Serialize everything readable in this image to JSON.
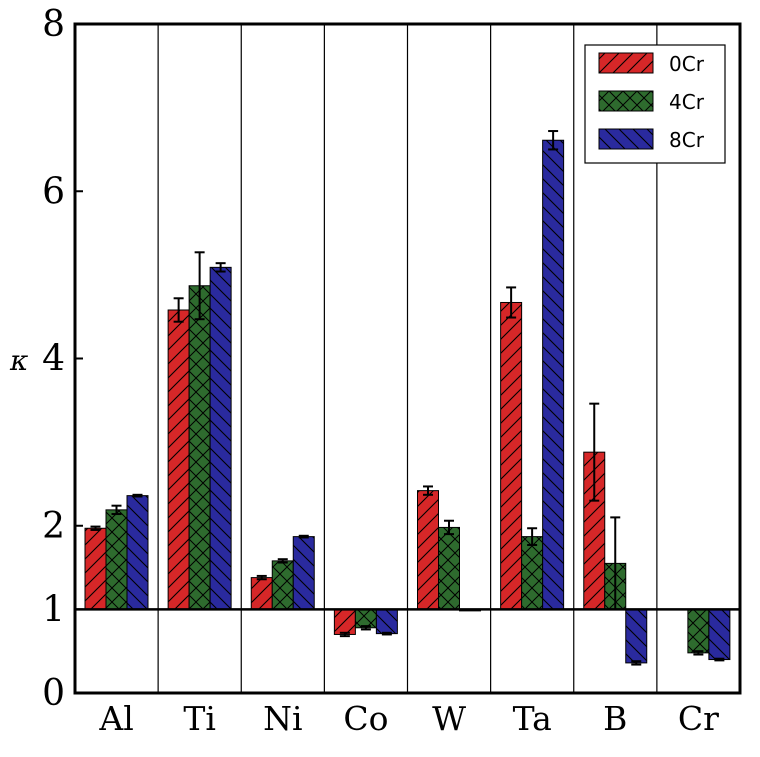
{
  "chart_data": {
    "type": "bar",
    "ylabel": "κ",
    "xlabel": "",
    "title": "",
    "ylim": [
      0,
      8
    ],
    "yticks": [
      0,
      1,
      2,
      4,
      6,
      8
    ],
    "baseline": 1,
    "grid": false,
    "legend_position": "top-right",
    "categories": [
      "Al",
      "Ti",
      "Ni",
      "Co",
      "W",
      "Ta",
      "B",
      "Cr"
    ],
    "series": [
      {
        "name": "0Cr",
        "color": "#d62728",
        "hatch": "diagonal-up",
        "values": [
          1.97,
          4.58,
          1.38,
          0.7,
          2.42,
          4.67,
          2.88,
          null
        ],
        "errors": [
          0.02,
          0.14,
          0.02,
          0.02,
          0.05,
          0.18,
          0.58,
          null
        ]
      },
      {
        "name": "4Cr",
        "color": "#2e6b2e",
        "hatch": "cross",
        "values": [
          2.19,
          4.87,
          1.58,
          0.78,
          1.98,
          1.87,
          1.55,
          0.48
        ],
        "errors": [
          0.05,
          0.4,
          0.02,
          0.02,
          0.08,
          0.1,
          0.55,
          0.02
        ]
      },
      {
        "name": "8Cr",
        "color": "#2a2a9e",
        "hatch": "diagonal-down",
        "values": [
          2.36,
          5.09,
          1.87,
          0.71,
          1.0,
          6.61,
          0.36,
          0.4
        ],
        "errors": [
          0.01,
          0.05,
          0.01,
          0.01,
          0.0,
          0.11,
          0.02,
          0.01
        ]
      }
    ]
  }
}
